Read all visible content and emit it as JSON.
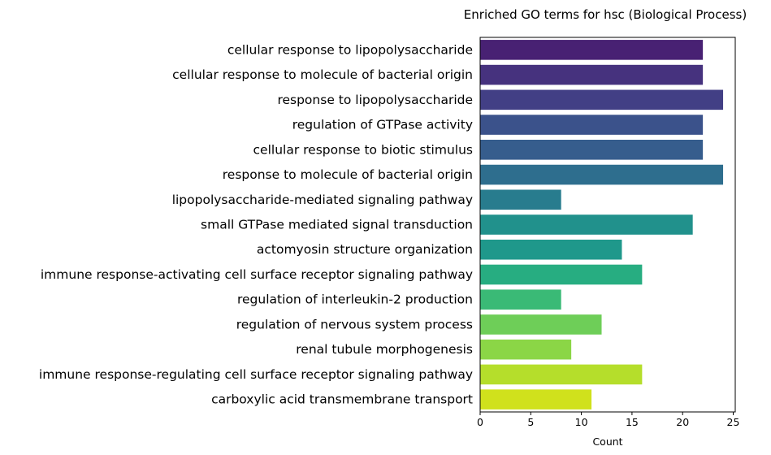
{
  "chart_data": {
    "type": "bar",
    "orientation": "horizontal",
    "title": "Enriched GO terms for hsc (Biological Process)",
    "xlabel": "Count",
    "ylabel": "",
    "xlim": [
      0,
      25.2
    ],
    "xticks": [
      0,
      5,
      10,
      15,
      20,
      25
    ],
    "grid": false,
    "colormap": "viridis",
    "categories": [
      "cellular response to lipopolysaccharide",
      "cellular response to molecule of bacterial origin",
      "response to lipopolysaccharide",
      "regulation of GTPase activity",
      "cellular response to biotic stimulus",
      "response to molecule of bacterial origin",
      "lipopolysaccharide-mediated signaling pathway",
      "small GTPase mediated signal transduction",
      "actomyosin structure organization",
      "immune response-activating cell surface receptor signaling pathway",
      "regulation of interleukin-2 production",
      "regulation of nervous system process",
      "renal tubule morphogenesis",
      "immune response-regulating cell surface receptor signaling pathway",
      "carboxylic acid transmembrane transport"
    ],
    "values": [
      22,
      22,
      24,
      22,
      22,
      24,
      8,
      21,
      14,
      16,
      8,
      12,
      9,
      16,
      11
    ],
    "colors": [
      "#482173",
      "#46327e",
      "#423f85",
      "#3b528b",
      "#365d8d",
      "#2e6e8e",
      "#287c8e",
      "#21918c",
      "#1f988b",
      "#27ad81",
      "#3aba76",
      "#6ece58",
      "#8bd646",
      "#b5de2b",
      "#d0e11c"
    ]
  }
}
